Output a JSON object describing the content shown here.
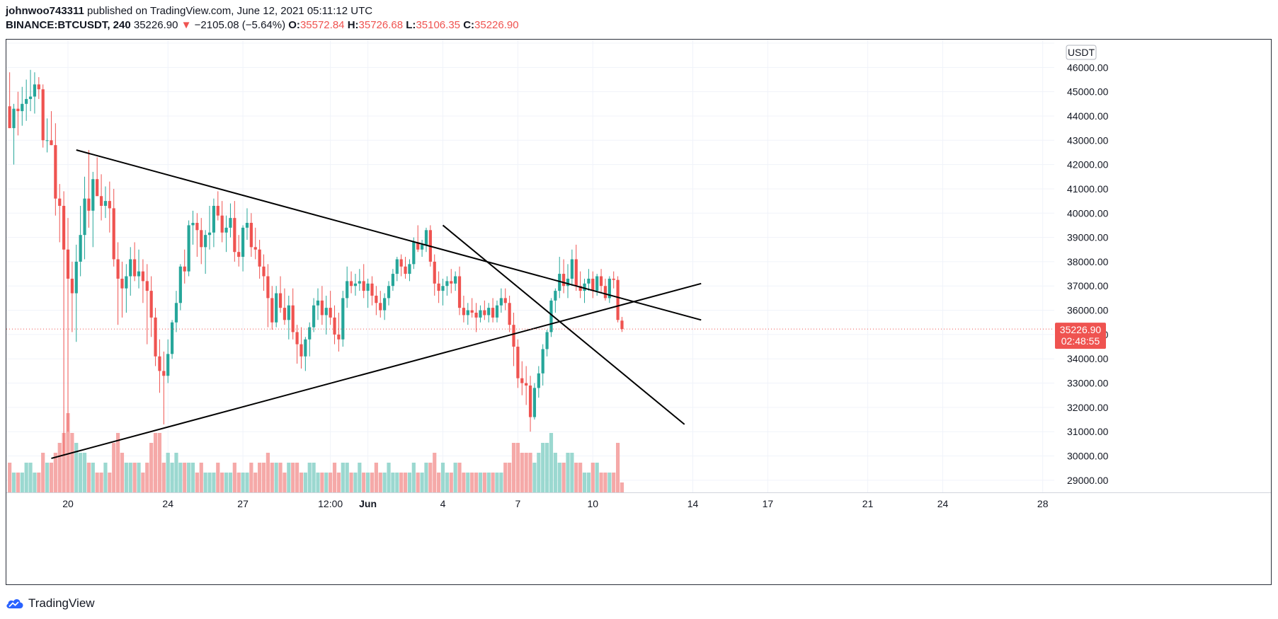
{
  "header": {
    "author": "johnwoo743311",
    "published": "published on TradingView.com, June 12, 2021 05:11:12 UTC",
    "symbol": "BINANCE:BTCUSDT, 240",
    "last": "35226.90",
    "change_arrow": "▼",
    "change": "−2105.08 (−5.64%)",
    "o_label": "O:",
    "o_value": "35572.84",
    "h_label": "H:",
    "h_value": "35726.68",
    "l_label": "L:",
    "l_value": "35106.35",
    "c_label": "C:",
    "c_value": "35226.90"
  },
  "price_axis": {
    "currency_badge": "USDT",
    "last_price_label": "35226.90",
    "countdown_label": "02:48:55"
  },
  "footer": {
    "brand": "TradingView",
    "logo_icon": "tradingview-cloud-icon"
  },
  "colors": {
    "up": "#26a69a",
    "down": "#ef5350",
    "vol_up": "#9bd8d0",
    "vol_down": "#f5a9a8",
    "grid": "#f0f3fa",
    "trendline": "#000000"
  },
  "chart_data": {
    "type": "candlestick",
    "symbol": "BINANCE:BTCUSDT",
    "interval": "240",
    "ylim": [
      28500,
      47000
    ],
    "y_ticks": [
      29000,
      30000,
      31000,
      32000,
      33000,
      34000,
      35000,
      36000,
      37000,
      38000,
      39000,
      40000,
      41000,
      42000,
      43000,
      44000,
      45000,
      46000,
      47000
    ],
    "x_ticks": [
      {
        "label": "20",
        "date": "2021-05-20"
      },
      {
        "label": "24",
        "date": "2021-05-24"
      },
      {
        "label": "27",
        "date": "2021-05-27"
      },
      {
        "label": "12:00",
        "date": "2021-05-30T12:00"
      },
      {
        "label": "Jun",
        "date": "2021-06-01"
      },
      {
        "label": "4",
        "date": "2021-06-04"
      },
      {
        "label": "7",
        "date": "2021-06-07"
      },
      {
        "label": "10",
        "date": "2021-06-10"
      },
      {
        "label": "14",
        "date": "2021-06-14"
      },
      {
        "label": "17",
        "date": "2021-06-17"
      },
      {
        "label": "21",
        "date": "2021-06-21"
      },
      {
        "label": "24",
        "date": "2021-06-24"
      },
      {
        "label": "28",
        "date": "2021-06-28"
      }
    ],
    "last_price": 35226.9,
    "grid": true,
    "candles": {
      "fields": [
        "open",
        "high",
        "low",
        "close",
        "volume_level"
      ],
      "start": "2021-05-17T16:00",
      "bar_hours": 4,
      "rows": [
        [
          44400,
          45800,
          43500,
          43500,
          3
        ],
        [
          43500,
          44500,
          42000,
          44300,
          2
        ],
        [
          44300,
          45000,
          43200,
          44200,
          2
        ],
        [
          44200,
          45200,
          43600,
          44500,
          2
        ],
        [
          44500,
          45500,
          43800,
          44700,
          3
        ],
        [
          44700,
          45900,
          44200,
          44800,
          3
        ],
        [
          44800,
          45800,
          44100,
          45300,
          2
        ],
        [
          45300,
          45600,
          44700,
          45100,
          2
        ],
        [
          45100,
          45300,
          42700,
          43000,
          4
        ],
        [
          43000,
          43900,
          42500,
          43000,
          3
        ],
        [
          43000,
          44200,
          42800,
          42800,
          3
        ],
        [
          42800,
          43700,
          39900,
          40600,
          4
        ],
        [
          40600,
          41200,
          38800,
          40300,
          5
        ],
        [
          40300,
          40900,
          30000,
          38500,
          6
        ],
        [
          38500,
          39800,
          31000,
          37300,
          8
        ],
        [
          37300,
          38000,
          35100,
          36700,
          6
        ],
        [
          36700,
          38700,
          34700,
          38000,
          5
        ],
        [
          38000,
          40300,
          37400,
          39100,
          4
        ],
        [
          39100,
          41500,
          38100,
          40600,
          4
        ],
        [
          40600,
          42600,
          39400,
          40100,
          3
        ],
        [
          40100,
          41700,
          38600,
          41400,
          3
        ],
        [
          41400,
          42300,
          40800,
          40700,
          2
        ],
        [
          40700,
          41600,
          39700,
          40300,
          2
        ],
        [
          40300,
          41100,
          39800,
          40500,
          3
        ],
        [
          40500,
          41300,
          39200,
          40200,
          2
        ],
        [
          40200,
          41000,
          37800,
          38100,
          5
        ],
        [
          38100,
          38800,
          35400,
          37300,
          6
        ],
        [
          37300,
          38000,
          35700,
          36900,
          4
        ],
        [
          36900,
          37900,
          35900,
          37400,
          3
        ],
        [
          37400,
          38600,
          36600,
          38100,
          3
        ],
        [
          38100,
          38800,
          37200,
          37400,
          3
        ],
        [
          37400,
          38500,
          36900,
          37600,
          3
        ],
        [
          37600,
          38100,
          36300,
          37200,
          2
        ],
        [
          37200,
          37900,
          34600,
          36800,
          3
        ],
        [
          36800,
          37400,
          34900,
          35700,
          5
        ],
        [
          35700,
          36100,
          33700,
          34100,
          6
        ],
        [
          34100,
          34800,
          32600,
          33500,
          6
        ],
        [
          33500,
          34300,
          31300,
          33300,
          3
        ],
        [
          33300,
          34800,
          33000,
          34200,
          4
        ],
        [
          34200,
          35600,
          34000,
          35500,
          3
        ],
        [
          35500,
          36800,
          35100,
          36300,
          4
        ],
        [
          36300,
          37900,
          36000,
          37800,
          3
        ],
        [
          37800,
          38500,
          37100,
          37600,
          3
        ],
        [
          37600,
          39700,
          37400,
          39500,
          3
        ],
        [
          39500,
          40100,
          38700,
          39600,
          3
        ],
        [
          39600,
          40000,
          38200,
          39300,
          2
        ],
        [
          39300,
          39800,
          37900,
          38600,
          3
        ],
        [
          38600,
          39300,
          37500,
          39100,
          2
        ],
        [
          39100,
          40300,
          38500,
          39200,
          2
        ],
        [
          39200,
          40600,
          38600,
          40300,
          2
        ],
        [
          40300,
          40900,
          39700,
          39900,
          3
        ],
        [
          39900,
          40500,
          38800,
          39200,
          2
        ],
        [
          39200,
          39900,
          38400,
          39400,
          2
        ],
        [
          39400,
          40400,
          39000,
          39800,
          2
        ],
        [
          39800,
          40500,
          38000,
          38400,
          3
        ],
        [
          38400,
          39100,
          37800,
          38200,
          2
        ],
        [
          38200,
          39500,
          37600,
          39400,
          2
        ],
        [
          39400,
          40200,
          38900,
          39600,
          2
        ],
        [
          39600,
          40000,
          38200,
          38600,
          3
        ],
        [
          38600,
          39400,
          38100,
          38500,
          2
        ],
        [
          38500,
          38900,
          37300,
          37800,
          3
        ],
        [
          37800,
          38300,
          36800,
          37400,
          3
        ],
        [
          37400,
          37900,
          35300,
          36500,
          4
        ],
        [
          36500,
          37000,
          35200,
          35500,
          3
        ],
        [
          35500,
          37000,
          35300,
          36700,
          3
        ],
        [
          36700,
          37400,
          35900,
          36100,
          3
        ],
        [
          36100,
          36900,
          35400,
          35600,
          2
        ],
        [
          35600,
          36600,
          34800,
          36200,
          3
        ],
        [
          36200,
          36900,
          34800,
          35100,
          3
        ],
        [
          35100,
          35400,
          33800,
          34600,
          3
        ],
        [
          34600,
          35300,
          33600,
          34100,
          2
        ],
        [
          34100,
          34900,
          33500,
          34800,
          2
        ],
        [
          34800,
          35500,
          34100,
          35300,
          3
        ],
        [
          35300,
          36500,
          35100,
          36200,
          3
        ],
        [
          36200,
          36900,
          35600,
          36400,
          2
        ],
        [
          36400,
          37000,
          35400,
          35800,
          2
        ],
        [
          35800,
          36600,
          35000,
          36100,
          2
        ],
        [
          36100,
          36800,
          35400,
          35700,
          2
        ],
        [
          35700,
          36200,
          34600,
          35000,
          3
        ],
        [
          35000,
          35900,
          34300,
          34800,
          2
        ],
        [
          34800,
          36800,
          34500,
          36500,
          3
        ],
        [
          36500,
          37800,
          36100,
          37200,
          3
        ],
        [
          37200,
          37600,
          36700,
          37000,
          2
        ],
        [
          37000,
          37500,
          36600,
          37100,
          2
        ],
        [
          37100,
          37700,
          36800,
          37200,
          3
        ],
        [
          37200,
          37900,
          36500,
          36800,
          2
        ],
        [
          36800,
          37300,
          36100,
          37100,
          2
        ],
        [
          37100,
          37400,
          36200,
          36600,
          2
        ],
        [
          36600,
          37000,
          35800,
          36300,
          3
        ],
        [
          36300,
          36800,
          35700,
          36000,
          2
        ],
        [
          36000,
          36700,
          35600,
          36500,
          2
        ],
        [
          36500,
          37200,
          36200,
          37000,
          3
        ],
        [
          37000,
          37700,
          36800,
          37500,
          2
        ],
        [
          37500,
          38200,
          37200,
          38100,
          2
        ],
        [
          38100,
          38300,
          37400,
          37800,
          2
        ],
        [
          37800,
          38200,
          37300,
          37500,
          2
        ],
        [
          37500,
          38100,
          37200,
          37900,
          2
        ],
        [
          37900,
          39000,
          37700,
          38800,
          3
        ],
        [
          38800,
          39500,
          38400,
          38500,
          2
        ],
        [
          38500,
          38900,
          38200,
          38700,
          2
        ],
        [
          38700,
          39400,
          38400,
          39300,
          3
        ],
        [
          39300,
          39500,
          37800,
          38000,
          3
        ],
        [
          38000,
          38300,
          36600,
          37100,
          4
        ],
        [
          37100,
          37600,
          36300,
          36800,
          2
        ],
        [
          36800,
          37300,
          36200,
          37000,
          3
        ],
        [
          37000,
          37400,
          36600,
          37200,
          2
        ],
        [
          37200,
          37700,
          36700,
          37100,
          2
        ],
        [
          37100,
          37600,
          36800,
          37400,
          3
        ],
        [
          37400,
          37800,
          35800,
          36100,
          3
        ],
        [
          36100,
          36600,
          35500,
          35800,
          2
        ],
        [
          35800,
          36300,
          35400,
          36000,
          2
        ],
        [
          36000,
          36500,
          35700,
          35900,
          2
        ],
        [
          35900,
          36300,
          35100,
          35700,
          2
        ],
        [
          35700,
          36200,
          35500,
          36000,
          2
        ],
        [
          36000,
          36400,
          35600,
          35800,
          2
        ],
        [
          35800,
          36300,
          35500,
          36100,
          2
        ],
        [
          36100,
          36500,
          35500,
          35700,
          2
        ],
        [
          35700,
          36400,
          35500,
          36200,
          2
        ],
        [
          36200,
          36900,
          35900,
          36500,
          2
        ],
        [
          36500,
          36900,
          36000,
          36300,
          3
        ],
        [
          36300,
          36600,
          35100,
          35400,
          3
        ],
        [
          35400,
          35900,
          33700,
          34500,
          5
        ],
        [
          34500,
          34800,
          32800,
          33200,
          5
        ],
        [
          33200,
          33900,
          32500,
          33000,
          4
        ],
        [
          33000,
          33700,
          32100,
          32900,
          4
        ],
        [
          32900,
          33300,
          31000,
          31600,
          4
        ],
        [
          31600,
          33000,
          31500,
          32800,
          3
        ],
        [
          32800,
          33700,
          32400,
          33400,
          4
        ],
        [
          33400,
          34600,
          32900,
          34400,
          5
        ],
        [
          34400,
          35200,
          34100,
          35100,
          5
        ],
        [
          35100,
          36500,
          34900,
          36400,
          6
        ],
        [
          36400,
          36900,
          35900,
          36800,
          4
        ],
        [
          36800,
          38200,
          36500,
          37500,
          3
        ],
        [
          37500,
          38100,
          36700,
          37000,
          3
        ],
        [
          37000,
          37900,
          36500,
          37300,
          4
        ],
        [
          37300,
          38500,
          37000,
          38100,
          4
        ],
        [
          38100,
          38700,
          36800,
          37000,
          3
        ],
        [
          37000,
          37600,
          36500,
          36800,
          3
        ],
        [
          36800,
          37300,
          36300,
          37100,
          2
        ],
        [
          37100,
          37700,
          36800,
          37300,
          2
        ],
        [
          37300,
          37600,
          36500,
          36800,
          3
        ],
        [
          36800,
          37500,
          36600,
          37400,
          3
        ],
        [
          37400,
          37700,
          36700,
          37000,
          2
        ],
        [
          37000,
          37300,
          36400,
          36500,
          2
        ],
        [
          36500,
          37400,
          36300,
          37300,
          2
        ],
        [
          37300,
          37600,
          36900,
          37250,
          2
        ],
        [
          37250,
          37400,
          35500,
          35600,
          5
        ],
        [
          35573,
          35727,
          35106,
          35227,
          1
        ]
      ]
    },
    "trendlines": [
      {
        "name": "upper-descending",
        "from": {
          "date": "2021-05-20T08:00",
          "price": 42600
        },
        "to": {
          "date": "2021-06-14T08:00",
          "price": 35600
        }
      },
      {
        "name": "lower-ascending",
        "from": {
          "date": "2021-05-19T08:00",
          "price": 29900
        },
        "to": {
          "date": "2021-06-14T08:00",
          "price": 37100
        }
      },
      {
        "name": "steep-descending",
        "from": {
          "date": "2021-06-04T00:00",
          "price": 39500
        },
        "to": {
          "date": "2021-06-13T16:00",
          "price": 31300
        }
      }
    ]
  }
}
